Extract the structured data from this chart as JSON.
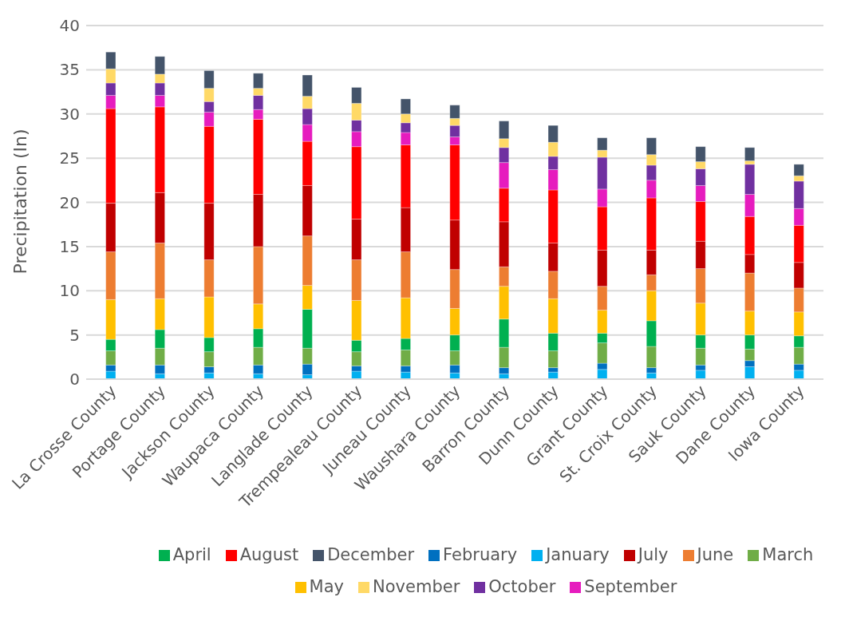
{
  "chart_data": {
    "type": "bar",
    "stacked": true,
    "ylabel": "Precipitation (In)",
    "categories": [
      "La Crosse County",
      "Portage County",
      "Jackson County",
      "Waupaca County",
      "Langlade County",
      "Trempealeau County",
      "Juneau County",
      "Waushara County",
      "Barron County",
      "Dunn County",
      "Grant County",
      "St. Croix County",
      "Sauk County",
      "Dane County",
      "Iowa County"
    ],
    "series": [
      {
        "name": "January",
        "color": "#00b0f0",
        "values": [
          0.9,
          0.6,
          0.7,
          0.6,
          0.5,
          0.9,
          0.8,
          0.7,
          0.6,
          0.8,
          1.1,
          0.7,
          1.0,
          1.4,
          1.0
        ]
      },
      {
        "name": "February",
        "color": "#0070c0",
        "values": [
          0.7,
          1.0,
          0.7,
          1.0,
          1.2,
          0.6,
          0.7,
          0.9,
          0.7,
          0.5,
          0.7,
          0.6,
          0.6,
          0.7,
          0.7
        ]
      },
      {
        "name": "March",
        "color": "#70ad47",
        "values": [
          1.6,
          1.9,
          1.7,
          2.0,
          1.8,
          1.6,
          1.8,
          1.6,
          2.3,
          1.9,
          2.3,
          2.4,
          1.9,
          1.3,
          1.9
        ]
      },
      {
        "name": "April",
        "color": "#00b050",
        "values": [
          1.3,
          2.1,
          1.6,
          2.1,
          4.4,
          1.3,
          1.3,
          1.8,
          3.2,
          2.0,
          1.1,
          2.9,
          1.5,
          1.6,
          1.3
        ]
      },
      {
        "name": "May",
        "color": "#ffc000",
        "values": [
          4.5,
          3.5,
          4.6,
          2.8,
          2.7,
          4.5,
          4.6,
          3.0,
          3.7,
          3.9,
          2.6,
          3.4,
          3.6,
          2.7,
          2.7
        ]
      },
      {
        "name": "June",
        "color": "#ed7d31",
        "values": [
          5.4,
          6.3,
          4.2,
          6.5,
          5.6,
          4.6,
          5.2,
          4.4,
          2.2,
          3.1,
          2.7,
          1.8,
          3.9,
          4.3,
          2.7
        ]
      },
      {
        "name": "July",
        "color": "#c00000",
        "values": [
          5.5,
          5.7,
          6.4,
          5.9,
          5.7,
          4.6,
          5.0,
          5.6,
          5.1,
          3.2,
          4.1,
          2.8,
          3.1,
          2.1,
          2.9
        ]
      },
      {
        "name": "August",
        "color": "#ff0000",
        "values": [
          10.7,
          9.7,
          8.7,
          8.5,
          5.0,
          8.2,
          7.1,
          8.5,
          3.8,
          6.0,
          4.9,
          5.9,
          4.5,
          4.3,
          4.2
        ]
      },
      {
        "name": "September",
        "color": "#e61cbe",
        "values": [
          1.5,
          1.3,
          1.6,
          1.1,
          1.9,
          1.7,
          1.4,
          0.9,
          2.9,
          2.3,
          2.0,
          2.0,
          1.8,
          2.5,
          1.9
        ]
      },
      {
        "name": "October",
        "color": "#7030a0",
        "values": [
          1.4,
          1.4,
          1.2,
          1.6,
          1.8,
          1.3,
          1.1,
          1.3,
          1.7,
          1.5,
          3.6,
          1.7,
          1.9,
          3.4,
          3.1
        ]
      },
      {
        "name": "November",
        "color": "#ffd966",
        "values": [
          1.6,
          1.0,
          1.5,
          0.8,
          1.4,
          1.9,
          1.0,
          0.8,
          1.0,
          1.6,
          0.8,
          1.2,
          0.8,
          0.4,
          0.6
        ]
      },
      {
        "name": "December",
        "color": "#44546a",
        "values": [
          1.9,
          2.0,
          2.0,
          1.7,
          2.4,
          1.8,
          1.7,
          1.5,
          2.0,
          1.9,
          1.4,
          1.9,
          1.7,
          1.5,
          1.3
        ]
      }
    ],
    "ylim": [
      0,
      40
    ],
    "yticks": [
      0,
      5,
      10,
      15,
      20,
      25,
      30,
      35,
      40
    ],
    "grid": "y",
    "legend": "bottom"
  }
}
